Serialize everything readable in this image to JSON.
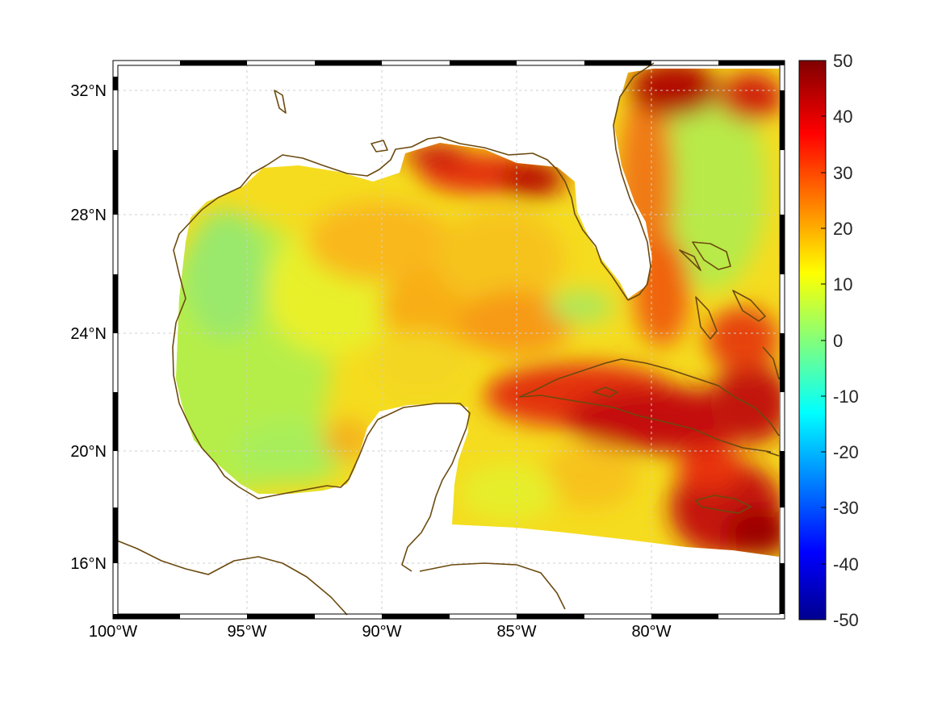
{
  "map": {
    "longitude_labels": [
      "100°W",
      "95°W",
      "90°W",
      "85°W",
      "80°W"
    ],
    "longitude_values": [
      -100,
      -95,
      -90,
      -85,
      -80
    ],
    "latitude_labels": [
      "32°N",
      "28°N",
      "24°N",
      "20°N",
      "16°N"
    ],
    "latitude_values": [
      32,
      28,
      24,
      20,
      16
    ],
    "extent": {
      "lon_min": -100,
      "lon_max": -75,
      "lat_min": 14.2,
      "lat_max": 32.9
    },
    "coastline_color": "#6b4a0f",
    "frame_style": "alternating black/white map border",
    "grid": true
  },
  "colorbar": {
    "tick_labels": [
      "50",
      "40",
      "30",
      "20",
      "10",
      "0",
      "-10",
      "-20",
      "-30",
      "-40",
      "-50"
    ],
    "tick_values": [
      50,
      40,
      30,
      20,
      10,
      0,
      -10,
      -20,
      -30,
      -40,
      -50
    ],
    "range": [
      -50,
      50
    ],
    "colormap": "jet",
    "colormap_stops": [
      "#00008f",
      "#0000ff",
      "#00ffff",
      "#ffff00",
      "#ff0000",
      "#800000"
    ]
  },
  "field": {
    "description_values": {
      "western_gulf": 5,
      "central_gulf": 20,
      "north_gulf_coast_max": 45,
      "cuba_caribbean_max": 45,
      "atlantic_north_max": 45,
      "florida_straits": 8
    }
  }
}
